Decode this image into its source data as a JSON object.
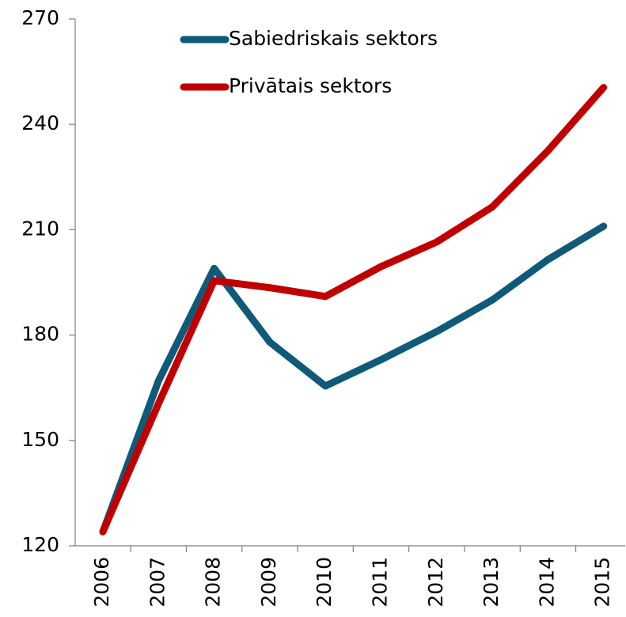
{
  "chart_data": {
    "type": "line",
    "categories": [
      "2006",
      "2007",
      "2008",
      "2009",
      "2010",
      "2011",
      "2012",
      "2013",
      "2014",
      "2015"
    ],
    "series": [
      {
        "name": "Sabiedriskais sektors",
        "color": "#0e5a78",
        "values": [
          124,
          167,
          199,
          178,
          165.5,
          173,
          181,
          190,
          201.5,
          211
        ]
      },
      {
        "name": "Privātais sektors",
        "color": "#c00000",
        "values": [
          124,
          160.5,
          195.5,
          193.5,
          191,
          199.5,
          206.5,
          216.5,
          232.5,
          250.5
        ]
      }
    ],
    "ylim": [
      120,
      270
    ],
    "yticks": [
      120,
      150,
      180,
      210,
      240,
      270
    ],
    "grid": false,
    "legend": "top"
  }
}
